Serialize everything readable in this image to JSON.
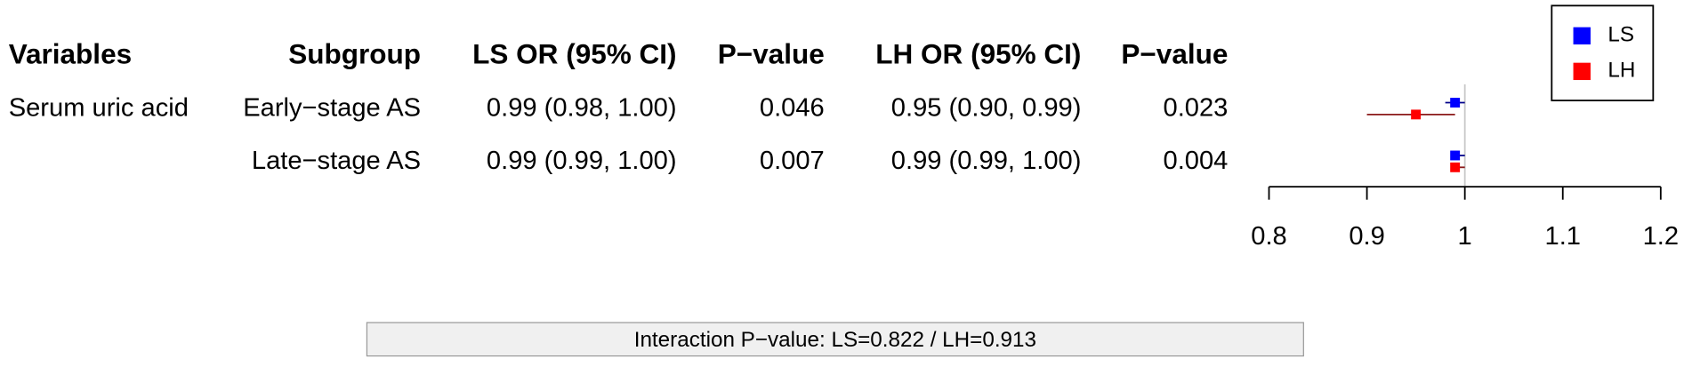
{
  "chart_data": {
    "type": "forest",
    "columns": [
      "Variables",
      "Subgroup",
      "LS OR (95% CI)",
      "P−value",
      "LH OR (95% CI)",
      "P−value"
    ],
    "rows": [
      [
        "Serum uric acid",
        "Early−stage AS",
        "0.99 (0.98, 1.00)",
        "0.046",
        "0.95 (0.90, 0.99)",
        "0.023"
      ],
      [
        null,
        "Late−stage AS",
        "0.99 (0.99, 1.00)",
        "0.007",
        "0.99 (0.99, 1.00)",
        "0.004"
      ]
    ],
    "series": [
      {
        "name": "LS",
        "color": "#0000ff",
        "ci_color": "#00008b",
        "values": [
          0.99,
          0.99
        ],
        "lower": [
          0.98,
          0.99
        ],
        "upper": [
          1.0,
          1.0
        ]
      },
      {
        "name": "LH",
        "color": "#ff0000",
        "ci_color": "#8b1a1a",
        "values": [
          0.95,
          0.99
        ],
        "lower": [
          0.9,
          0.99
        ],
        "upper": [
          0.99,
          1.0
        ]
      }
    ],
    "xlim": [
      0.8,
      1.2
    ],
    "xticks": [
      0.8,
      0.9,
      1,
      1.1,
      1.2
    ],
    "reference_line": 1,
    "annotation": "Interaction P−value: LS=0.822 / LH=0.913"
  }
}
